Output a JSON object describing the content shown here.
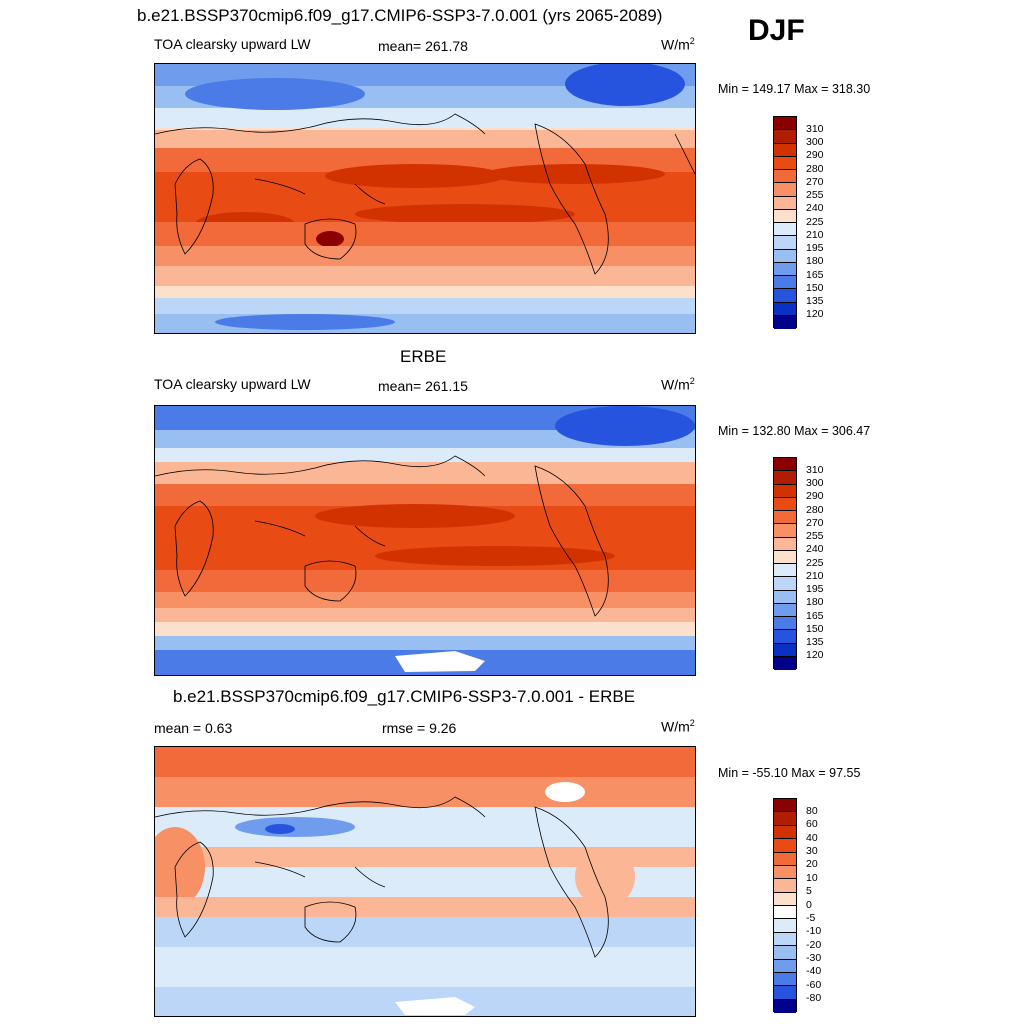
{
  "figure": {
    "main_title": "b.e21.BSSP370cmip6.f09_g17.CMIP6-SSP3-7.0.001 (yrs 2065-2089)",
    "season": "DJF"
  },
  "panels": [
    {
      "heading": "",
      "left_label": "TOA clearsky upward LW",
      "center_label": "mean= 261.78",
      "unit_base": "W/m",
      "unit_exp": "2",
      "minmax": "Min = 149.17 Max = 318.30",
      "colorbar": {
        "ticks": [
          "310",
          "300",
          "290",
          "280",
          "270",
          "255",
          "240",
          "225",
          "210",
          "195",
          "180",
          "165",
          "150",
          "135",
          "120"
        ],
        "colors": [
          "#8b0000",
          "#b01d00",
          "#d23200",
          "#e84b14",
          "#f26a3a",
          "#f89066",
          "#fbb696",
          "#fde0cc",
          "#dcebfa",
          "#bcd6f7",
          "#98bef2",
          "#6f9ced",
          "#4a7be6",
          "#2754df",
          "#0a30c4",
          "#00008b"
        ]
      }
    },
    {
      "heading": "ERBE",
      "left_label": "TOA clearsky upward LW",
      "center_label": "mean= 261.15",
      "unit_base": "W/m",
      "unit_exp": "2",
      "minmax": "Min = 132.80 Max = 306.47",
      "colorbar": {
        "ticks": [
          "310",
          "300",
          "290",
          "280",
          "270",
          "255",
          "240",
          "225",
          "210",
          "195",
          "180",
          "165",
          "150",
          "135",
          "120"
        ],
        "colors": [
          "#8b0000",
          "#b01d00",
          "#d23200",
          "#e84b14",
          "#f26a3a",
          "#f89066",
          "#fbb696",
          "#fde0cc",
          "#dcebfa",
          "#bcd6f7",
          "#98bef2",
          "#6f9ced",
          "#4a7be6",
          "#2754df",
          "#0a30c4",
          "#00008b"
        ]
      }
    },
    {
      "heading": "b.e21.BSSP370cmip6.f09_g17.CMIP6-SSP3-7.0.001 - ERBE",
      "left_label": "mean =   0.63",
      "center_label": "rmse =   9.26",
      "unit_base": "W/m",
      "unit_exp": "2",
      "minmax": "Min = -55.10 Max =  97.55",
      "colorbar": {
        "ticks": [
          "80",
          "60",
          "40",
          "30",
          "20",
          "10",
          "5",
          "0",
          "-5",
          "-10",
          "-20",
          "-30",
          "-40",
          "-60",
          "-80"
        ],
        "colors": [
          "#8b0000",
          "#b01d00",
          "#d23200",
          "#e84b14",
          "#f26a3a",
          "#f89066",
          "#fbb696",
          "#fde0cc",
          "#ffffff",
          "#dcebfa",
          "#bcd6f7",
          "#98bef2",
          "#6f9ced",
          "#4a7be6",
          "#2754df",
          "#00008b"
        ]
      }
    }
  ],
  "colors": {
    "land_outline": "#000000",
    "frame": "#000000"
  }
}
